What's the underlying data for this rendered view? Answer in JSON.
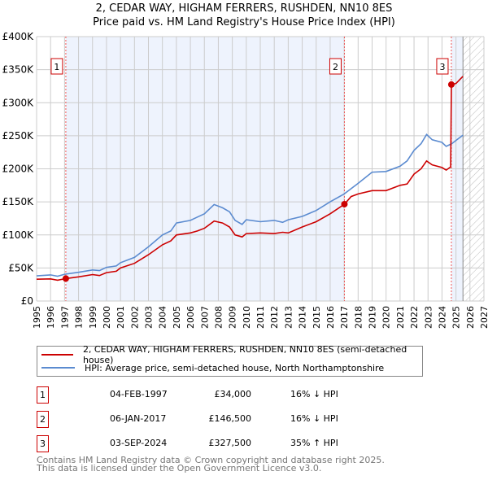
{
  "chart_data": {
    "type": "line",
    "title": "2, CEDAR WAY, HIGHAM FERRERS, RUSHDEN, NN10 8ES",
    "subtitle": "Price paid vs. HM Land Registry's House Price Index (HPI)",
    "xlim": [
      1995,
      2027
    ],
    "ylim": [
      0,
      400000
    ],
    "x_ticks": [
      "1995",
      "1996",
      "1997",
      "1998",
      "1999",
      "2000",
      "2001",
      "2002",
      "2003",
      "2004",
      "2005",
      "2006",
      "2007",
      "2008",
      "2009",
      "2010",
      "2011",
      "2012",
      "2013",
      "2014",
      "2015",
      "2016",
      "2017",
      "2018",
      "2019",
      "2020",
      "2021",
      "2022",
      "2023",
      "2024",
      "2025",
      "2026",
      "2027"
    ],
    "y_ticks": [
      {
        "v": 0,
        "label": "£0"
      },
      {
        "v": 50000,
        "label": "£50K"
      },
      {
        "v": 100000,
        "label": "£100K"
      },
      {
        "v": 150000,
        "label": "£150K"
      },
      {
        "v": 200000,
        "label": "£200K"
      },
      {
        "v": 250000,
        "label": "£250K"
      },
      {
        "v": 300000,
        "label": "£300K"
      },
      {
        "v": 350000,
        "label": "£350K"
      },
      {
        "v": 400000,
        "label": "£400K"
      }
    ],
    "grid": true,
    "shaded_ranges": [
      [
        1997.09,
        2017.02
      ],
      [
        2024.67,
        2025.5
      ]
    ],
    "forecast_hatch_from": 2025.5,
    "series": [
      {
        "name": "2, CEDAR WAY, HIGHAM FERRERS, RUSHDEN, NN10 8ES (semi-detached house)",
        "color": "#cc0000",
        "x": [
          1995,
          1996,
          1996.5,
          1997.09,
          1998,
          1999,
          1999.5,
          2000,
          2000.7,
          2001,
          2002,
          2003,
          2004,
          2004.6,
          2005,
          2006,
          2006.5,
          2007,
          2007.7,
          2008.3,
          2008.8,
          2009.2,
          2009.7,
          2010,
          2011,
          2012,
          2012.6,
          2013,
          2014,
          2015,
          2016,
          2017.02,
          2017.5,
          2018,
          2019,
          2020,
          2021,
          2021.5,
          2022,
          2022.5,
          2022.9,
          2023.3,
          2024,
          2024.3,
          2024.62,
          2024.67,
          2025,
          2025.5
        ],
        "y": [
          33000,
          33500,
          31500,
          34000,
          36500,
          40000,
          38500,
          43000,
          45000,
          50000,
          57000,
          70000,
          85000,
          91000,
          100000,
          103000,
          106000,
          110000,
          121000,
          118000,
          112000,
          100000,
          97000,
          102000,
          103000,
          102000,
          104000,
          103000,
          112000,
          120000,
          132000,
          146500,
          158000,
          162000,
          167000,
          167000,
          175000,
          177000,
          192000,
          200000,
          212000,
          206000,
          202000,
          198000,
          203000,
          327500,
          329000,
          340000
        ]
      },
      {
        "name": "HPI: Average price, semi-detached house, North Northamptonshire",
        "color": "#5b8bd0",
        "x": [
          1995,
          1996,
          1996.5,
          1997,
          1998,
          1999,
          1999.5,
          2000,
          2000.7,
          2001,
          2002,
          2003,
          2004,
          2004.6,
          2005,
          2006,
          2006.5,
          2007,
          2007.7,
          2008.3,
          2008.8,
          2009.2,
          2009.7,
          2010,
          2011,
          2012,
          2012.6,
          2013,
          2014,
          2015,
          2016,
          2017,
          2017.5,
          2018,
          2019,
          2020,
          2021,
          2021.5,
          2022,
          2022.5,
          2022.9,
          2023.3,
          2024,
          2024.3,
          2024.7,
          2025,
          2025.5
        ],
        "y": [
          38000,
          39500,
          37500,
          40500,
          43500,
          47000,
          46000,
          51000,
          53000,
          58000,
          66000,
          82000,
          100000,
          106000,
          118000,
          122000,
          127000,
          132000,
          146000,
          141000,
          135000,
          122000,
          116000,
          123000,
          120000,
          122000,
          119000,
          123000,
          128000,
          137000,
          150000,
          162000,
          170000,
          178000,
          195000,
          196000,
          204000,
          212000,
          228000,
          238000,
          252000,
          244000,
          240000,
          234000,
          238000,
          243000,
          251000
        ]
      }
    ],
    "sales": [
      {
        "label": "1",
        "x": 1997.09,
        "y": 34000,
        "date": "04-FEB-1997",
        "price": "£34,000",
        "hpi": "16% ↓ HPI"
      },
      {
        "label": "2",
        "x": 2017.02,
        "y": 146500,
        "date": "06-JAN-2017",
        "price": "£146,500",
        "hpi": "16% ↓ HPI"
      },
      {
        "label": "3",
        "x": 2024.67,
        "y": 327500,
        "date": "03-SEP-2024",
        "price": "£327,500",
        "hpi": "35% ↑ HPI"
      }
    ],
    "legend_placement": "below"
  },
  "footer": {
    "line1": "Contains HM Land Registry data © Crown copyright and database right 2025.",
    "line2": "This data is licensed under the Open Government Licence v3.0."
  }
}
